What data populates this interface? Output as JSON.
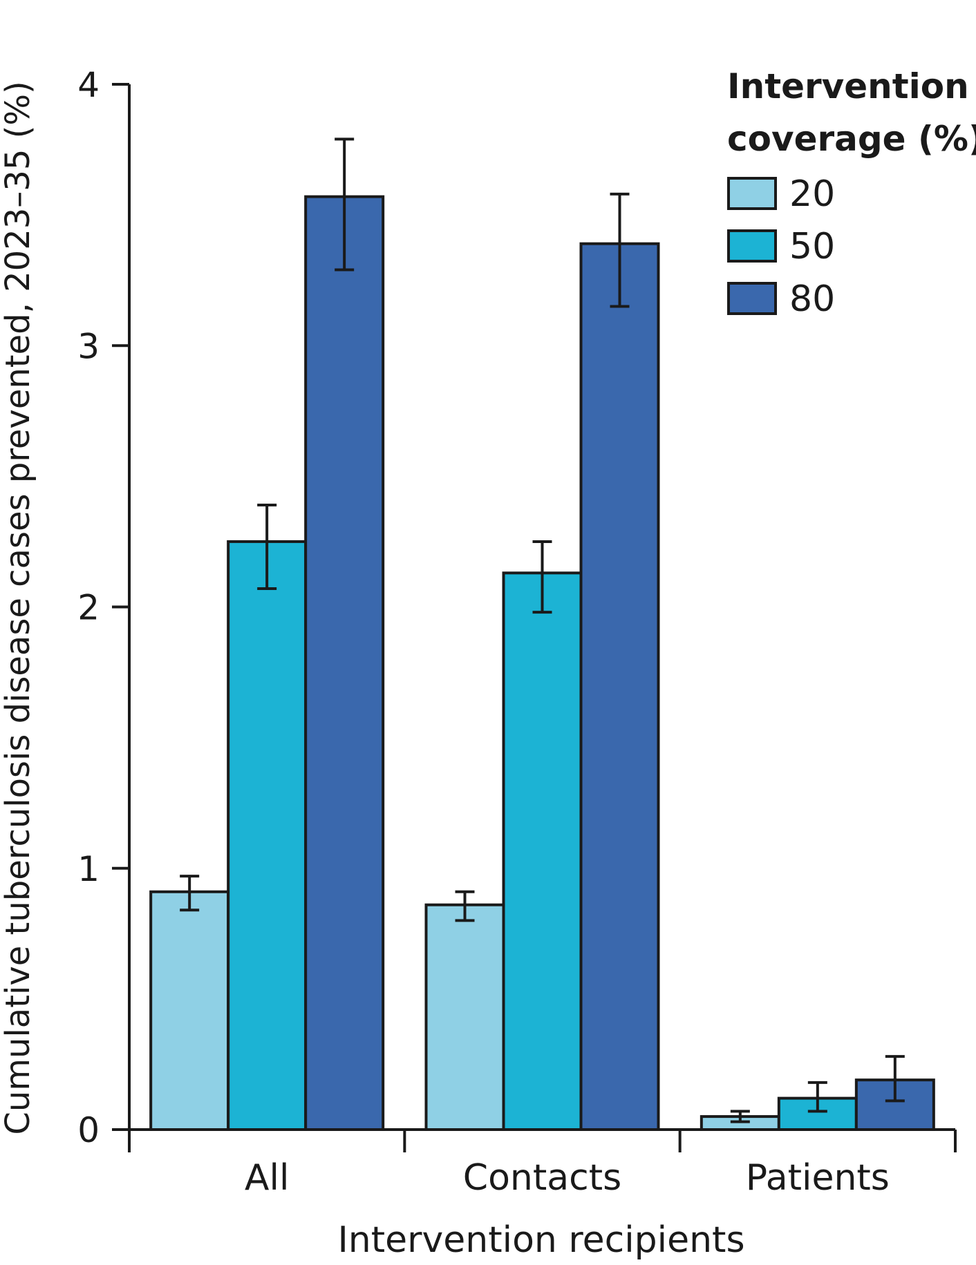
{
  "chart_data": {
    "type": "bar",
    "xlabel": "Intervention recipients",
    "ylabel": "Cumulative tuberculosis disease cases prevented, 2023–35 (%)",
    "ylim": [
      0,
      4
    ],
    "yticks": [
      "0",
      "1",
      "2",
      "3",
      "4"
    ],
    "categories": [
      "All",
      "Contacts",
      "Patients"
    ],
    "legend": {
      "title_line1": "Intervention",
      "title_line2": "coverage (%)",
      "placement": "top-right"
    },
    "series": [
      {
        "name": "20",
        "color": "#8fd0e5",
        "values": [
          0.91,
          0.86,
          0.05
        ],
        "err_low": [
          0.84,
          0.8,
          0.03
        ],
        "err_high": [
          0.97,
          0.91,
          0.07
        ]
      },
      {
        "name": "50",
        "color": "#1cb3d4",
        "values": [
          2.25,
          2.13,
          0.12
        ],
        "err_low": [
          2.07,
          1.98,
          0.07
        ],
        "err_high": [
          2.39,
          2.25,
          0.18
        ]
      },
      {
        "name": "80",
        "color": "#3a68ad",
        "values": [
          3.57,
          3.39,
          0.19
        ],
        "err_low": [
          3.29,
          3.15,
          0.11
        ],
        "err_high": [
          3.79,
          3.58,
          0.28
        ]
      }
    ],
    "grid": false
  }
}
